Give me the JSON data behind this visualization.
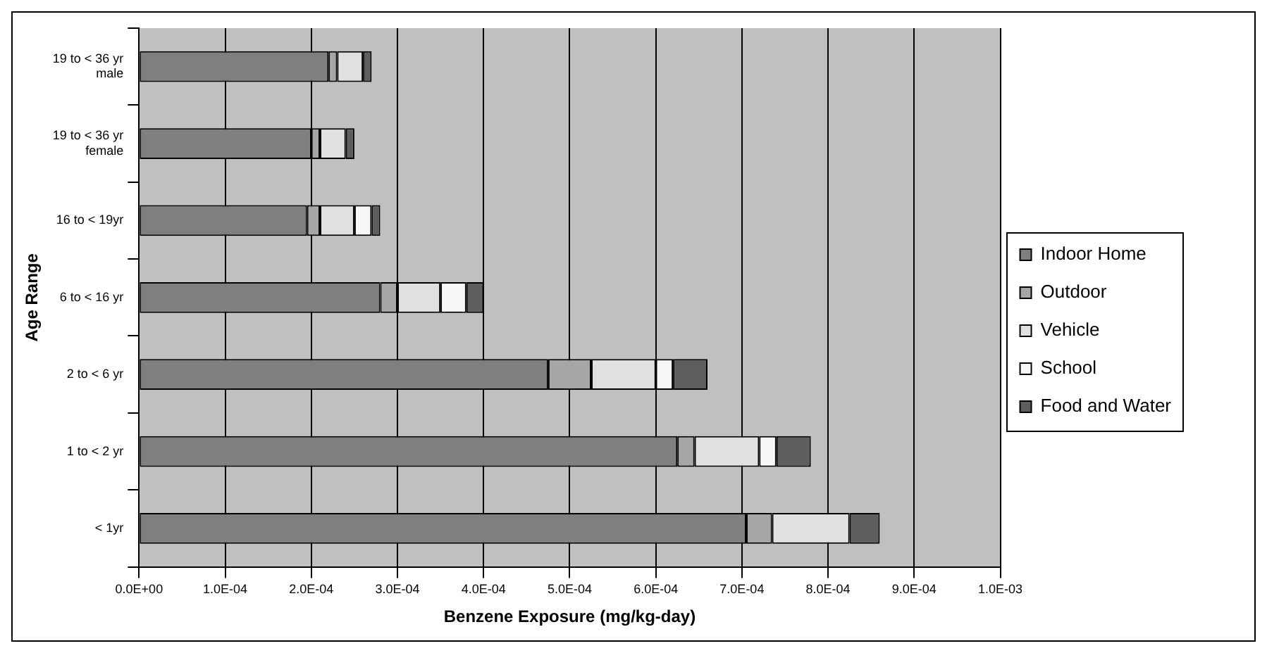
{
  "chart_data": {
    "type": "bar",
    "orientation": "horizontal",
    "stacked": true,
    "xlabel": "Benzene Exposure (mg/kg-day)",
    "ylabel": "Age Range",
    "categories": [
      "19 to < 36 yr male",
      "19 to < 36 yr female",
      "16 to < 19yr",
      "6 to < 16 yr",
      "2 to < 6 yr",
      "1 to < 2 yr",
      "< 1yr"
    ],
    "series": [
      {
        "name": "Indoor Home",
        "color": "#7f7f7f",
        "values": [
          0.00022,
          0.0002,
          0.000195,
          0.00028,
          0.000475,
          0.000625,
          0.000705
        ]
      },
      {
        "name": "Outdoor",
        "color": "#a6a6a6",
        "values": [
          1e-05,
          1e-05,
          1.5e-05,
          2e-05,
          5e-05,
          2e-05,
          3e-05
        ]
      },
      {
        "name": "Vehicle",
        "color": "#e0e0e0",
        "values": [
          3e-05,
          3e-05,
          4e-05,
          5e-05,
          7.5e-05,
          7.5e-05,
          9e-05
        ]
      },
      {
        "name": "School",
        "color": "#f7f7f7",
        "values": [
          0,
          0,
          2e-05,
          3e-05,
          2e-05,
          2e-05,
          0
        ]
      },
      {
        "name": "Food and Water",
        "color": "#5e5e5e",
        "values": [
          1e-05,
          1e-05,
          1e-05,
          2e-05,
          4e-05,
          4e-05,
          3.5e-05
        ]
      }
    ],
    "xlim": [
      0,
      0.001
    ],
    "xticks": [
      {
        "value": 0,
        "label": "0.0E+00"
      },
      {
        "value": 0.0001,
        "label": "1.0E-04"
      },
      {
        "value": 0.0002,
        "label": "2.0E-04"
      },
      {
        "value": 0.0003,
        "label": "3.0E-04"
      },
      {
        "value": 0.0004,
        "label": "4.0E-04"
      },
      {
        "value": 0.0005,
        "label": "5.0E-04"
      },
      {
        "value": 0.0006,
        "label": "6.0E-04"
      },
      {
        "value": 0.0007,
        "label": "7.0E-04"
      },
      {
        "value": 0.0008,
        "label": "8.0E-04"
      },
      {
        "value": 0.0009,
        "label": "9.0E-04"
      },
      {
        "value": 0.001,
        "label": "1.0E-03"
      }
    ],
    "grid": "x",
    "legend": "right"
  }
}
